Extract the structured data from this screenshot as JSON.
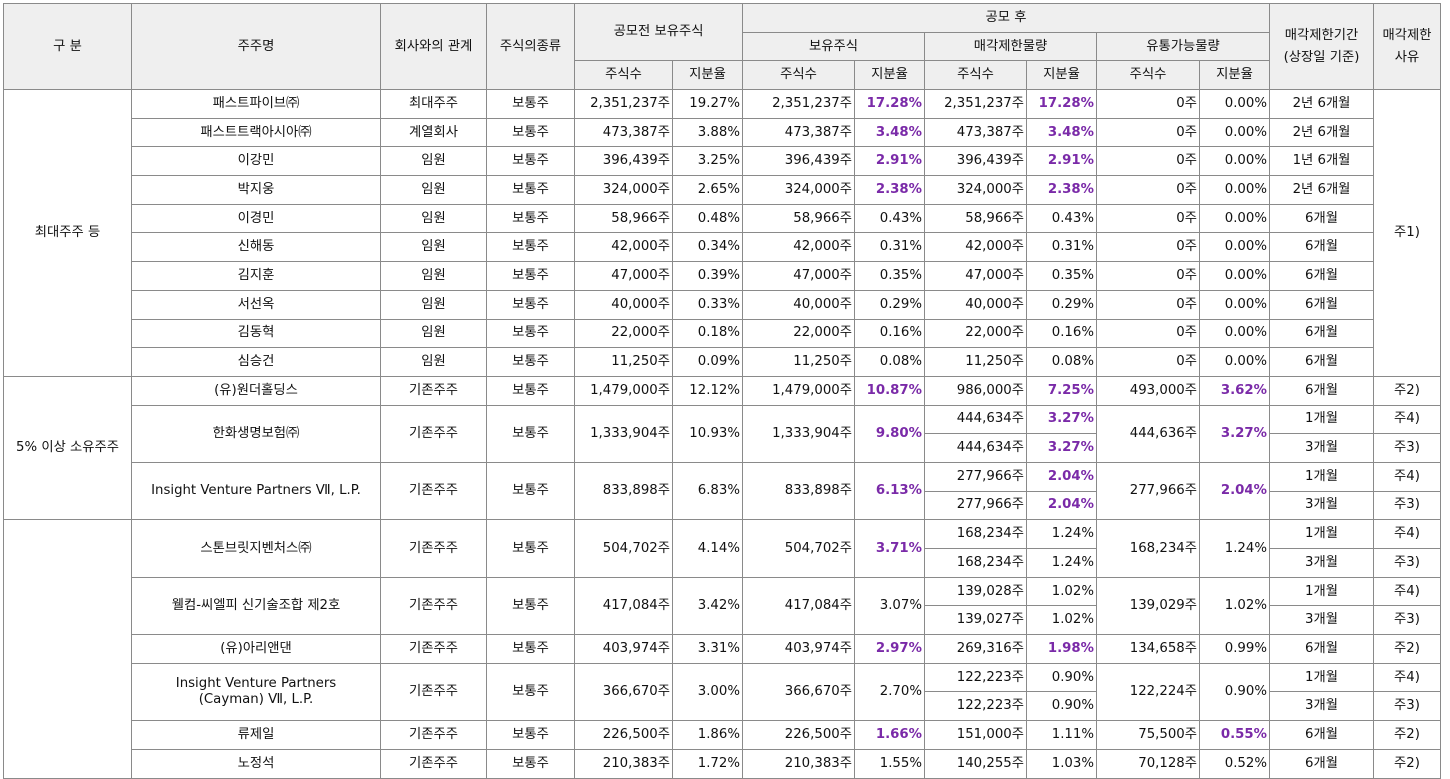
{
  "header": {
    "group": "구 분",
    "holder": "주주명",
    "relation": "회사와의 관계",
    "stock_type": "주식의종류",
    "pre_ipo": "공모전 보유주식",
    "post_ipo": "공모 후",
    "held": "보유주식",
    "restricted": "매각제한물량",
    "tradable": "유통가능물량",
    "period": "매각제한기간\n(상장일 기준)",
    "reason": "매각제한\n사유",
    "shares": "주식수",
    "ratio": "지분율"
  },
  "groups": [
    {
      "label": "최대주주 등",
      "reason": "주1)"
    },
    {
      "label": "5% 이상 소유주주"
    },
    {
      "label": ""
    }
  ],
  "rows": [
    {
      "name": "패스트파이브㈜",
      "rel": "최대주주",
      "type": "보통주",
      "pre_sh": "2,351,237주",
      "pre_pct": "19.27%",
      "post_sh": "2,351,237주",
      "post_pct": "17.28%",
      "lock": [
        {
          "sh": "2,351,237주",
          "pct": "17.28%",
          "period": "2년 6개월"
        }
      ],
      "free_sh": "0주",
      "free_pct": "0.00%"
    },
    {
      "name": "패스트트랙아시아㈜",
      "rel": "계열회사",
      "type": "보통주",
      "pre_sh": "473,387주",
      "pre_pct": "3.88%",
      "post_sh": "473,387주",
      "post_pct": "3.48%",
      "lock": [
        {
          "sh": "473,387주",
          "pct": "3.48%",
          "period": "2년 6개월"
        }
      ],
      "free_sh": "0주",
      "free_pct": "0.00%"
    },
    {
      "name": "이강민",
      "rel": "임원",
      "type": "보통주",
      "pre_sh": "396,439주",
      "pre_pct": "3.25%",
      "post_sh": "396,439주",
      "post_pct": "2.91%",
      "lock": [
        {
          "sh": "396,439주",
          "pct": "2.91%",
          "period": "1년 6개월"
        }
      ],
      "free_sh": "0주",
      "free_pct": "0.00%"
    },
    {
      "name": "박지웅",
      "rel": "임원",
      "type": "보통주",
      "pre_sh": "324,000주",
      "pre_pct": "2.65%",
      "post_sh": "324,000주",
      "post_pct": "2.38%",
      "lock": [
        {
          "sh": "324,000주",
          "pct": "2.38%",
          "period": "2년 6개월"
        }
      ],
      "free_sh": "0주",
      "free_pct": "0.00%"
    },
    {
      "name": "이경민",
      "rel": "임원",
      "type": "보통주",
      "pre_sh": "58,966주",
      "pre_pct": "0.48%",
      "post_sh": "58,966주",
      "post_pct": "0.43%",
      "lock": [
        {
          "sh": "58,966주",
          "pct": "0.43%",
          "period": "6개월"
        }
      ],
      "free_sh": "0주",
      "free_pct": "0.00%"
    },
    {
      "name": "신해동",
      "rel": "임원",
      "type": "보통주",
      "pre_sh": "42,000주",
      "pre_pct": "0.34%",
      "post_sh": "42,000주",
      "post_pct": "0.31%",
      "lock": [
        {
          "sh": "42,000주",
          "pct": "0.31%",
          "period": "6개월"
        }
      ],
      "free_sh": "0주",
      "free_pct": "0.00%"
    },
    {
      "name": "김지훈",
      "rel": "임원",
      "type": "보통주",
      "pre_sh": "47,000주",
      "pre_pct": "0.39%",
      "post_sh": "47,000주",
      "post_pct": "0.35%",
      "lock": [
        {
          "sh": "47,000주",
          "pct": "0.35%",
          "period": "6개월"
        }
      ],
      "free_sh": "0주",
      "free_pct": "0.00%"
    },
    {
      "name": "서선옥",
      "rel": "임원",
      "type": "보통주",
      "pre_sh": "40,000주",
      "pre_pct": "0.33%",
      "post_sh": "40,000주",
      "post_pct": "0.29%",
      "lock": [
        {
          "sh": "40,000주",
          "pct": "0.29%",
          "period": "6개월"
        }
      ],
      "free_sh": "0주",
      "free_pct": "0.00%"
    },
    {
      "name": "김동혁",
      "rel": "임원",
      "type": "보통주",
      "pre_sh": "22,000주",
      "pre_pct": "0.18%",
      "post_sh": "22,000주",
      "post_pct": "0.16%",
      "lock": [
        {
          "sh": "22,000주",
          "pct": "0.16%",
          "period": "6개월"
        }
      ],
      "free_sh": "0주",
      "free_pct": "0.00%"
    },
    {
      "name": "심승건",
      "rel": "임원",
      "type": "보통주",
      "pre_sh": "11,250주",
      "pre_pct": "0.09%",
      "post_sh": "11,250주",
      "post_pct": "0.08%",
      "lock": [
        {
          "sh": "11,250주",
          "pct": "0.08%",
          "period": "6개월"
        }
      ],
      "free_sh": "0주",
      "free_pct": "0.00%"
    },
    {
      "name": "(유)원더홀딩스",
      "rel": "기존주주",
      "type": "보통주",
      "pre_sh": "1,479,000주",
      "pre_pct": "12.12%",
      "post_sh": "1,479,000주",
      "post_pct": "10.87%",
      "lock": [
        {
          "sh": "986,000주",
          "pct": "7.25%",
          "period": "6개월",
          "reason": "주2)"
        }
      ],
      "free_sh": "493,000주",
      "free_pct": "3.62%"
    },
    {
      "name": "한화생명보험㈜",
      "rel": "기존주주",
      "type": "보통주",
      "pre_sh": "1,333,904주",
      "pre_pct": "10.93%",
      "post_sh": "1,333,904주",
      "post_pct": "9.80%",
      "lock": [
        {
          "sh": "444,634주",
          "pct": "3.27%",
          "period": "1개월",
          "reason": "주4)"
        },
        {
          "sh": "444,634주",
          "pct": "3.27%",
          "period": "3개월",
          "reason": "주3)"
        }
      ],
      "free_sh": "444,636주",
      "free_pct": "3.27%"
    },
    {
      "name": "Insight Venture Partners Ⅶ, L.P.",
      "rel": "기존주주",
      "type": "보통주",
      "pre_sh": "833,898주",
      "pre_pct": "6.83%",
      "post_sh": "833,898주",
      "post_pct": "6.13%",
      "lock": [
        {
          "sh": "277,966주",
          "pct": "2.04%",
          "period": "1개월",
          "reason": "주4)"
        },
        {
          "sh": "277,966주",
          "pct": "2.04%",
          "period": "3개월",
          "reason": "주3)"
        }
      ],
      "free_sh": "277,966주",
      "free_pct": "2.04%"
    },
    {
      "name": "스톤브릿지벤처스㈜",
      "rel": "기존주주",
      "type": "보통주",
      "pre_sh": "504,702주",
      "pre_pct": "4.14%",
      "post_sh": "504,702주",
      "post_pct": "3.71%",
      "lock": [
        {
          "sh": "168,234주",
          "pct": "1.24%",
          "period": "1개월",
          "reason": "주4)"
        },
        {
          "sh": "168,234주",
          "pct": "1.24%",
          "period": "3개월",
          "reason": "주3)"
        }
      ],
      "free_sh": "168,234주",
      "free_pct": "1.24%"
    },
    {
      "name": "웰컴-씨엘피 신기술조합 제2호",
      "rel": "기존주주",
      "type": "보통주",
      "pre_sh": "417,084주",
      "pre_pct": "3.42%",
      "post_sh": "417,084주",
      "post_pct": "3.07%",
      "lock": [
        {
          "sh": "139,028주",
          "pct": "1.02%",
          "period": "1개월",
          "reason": "주4)"
        },
        {
          "sh": "139,027주",
          "pct": "1.02%",
          "period": "3개월",
          "reason": "주3)"
        }
      ],
      "free_sh": "139,029주",
      "free_pct": "1.02%"
    },
    {
      "name": "(유)아리앤댄",
      "rel": "기존주주",
      "type": "보통주",
      "pre_sh": "403,974주",
      "pre_pct": "3.31%",
      "post_sh": "403,974주",
      "post_pct": "2.97%",
      "lock": [
        {
          "sh": "269,316주",
          "pct": "1.98%",
          "period": "6개월",
          "reason": "주2)"
        }
      ],
      "free_sh": "134,658주",
      "free_pct": "0.99%"
    },
    {
      "name": "Insight Venture Partners\n(Cayman) Ⅶ, L.P.",
      "rel": "기존주주",
      "type": "보통주",
      "pre_sh": "366,670주",
      "pre_pct": "3.00%",
      "post_sh": "366,670주",
      "post_pct": "2.70%",
      "lock": [
        {
          "sh": "122,223주",
          "pct": "0.90%",
          "period": "1개월",
          "reason": "주4)"
        },
        {
          "sh": "122,223주",
          "pct": "0.90%",
          "period": "3개월",
          "reason": "주3)"
        }
      ],
      "free_sh": "122,224주",
      "free_pct": "0.90%"
    },
    {
      "name": "류제일",
      "rel": "기존주주",
      "type": "보통주",
      "pre_sh": "226,500주",
      "pre_pct": "1.86%",
      "post_sh": "226,500주",
      "post_pct": "1.66%",
      "lock": [
        {
          "sh": "151,000주",
          "pct": "1.11%",
          "period": "6개월",
          "reason": "주2)"
        }
      ],
      "free_sh": "75,500주",
      "free_pct": "0.55%"
    },
    {
      "name": "노정석",
      "rel": "기존주주",
      "type": "보통주",
      "pre_sh": "210,383주",
      "pre_pct": "1.72%",
      "post_sh": "210,383주",
      "post_pct": "1.55%",
      "lock": [
        {
          "sh": "140,255주",
          "pct": "1.03%",
          "period": "6개월",
          "reason": "주2)"
        }
      ],
      "free_sh": "70,128주",
      "free_pct": "0.52%"
    }
  ],
  "highlight": {
    "post_pct": [
      0,
      1,
      2,
      3,
      10,
      11,
      12,
      13,
      15,
      17
    ],
    "lock_pct": [
      0,
      1,
      2,
      3,
      10,
      11,
      12,
      15
    ],
    "free_pct": [
      10,
      11,
      12,
      17
    ],
    "color": "#7a2aa8"
  }
}
